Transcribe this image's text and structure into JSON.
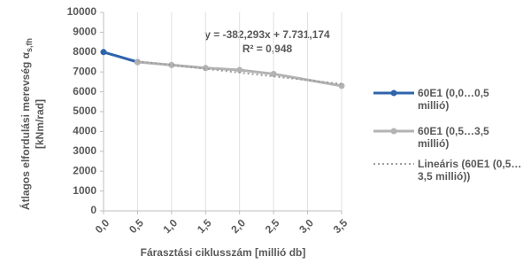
{
  "chart_data": {
    "type": "line",
    "y_label": "Átlagos elfordulási merevség α",
    "y_label_sub": "s,fh",
    "y_label_unit": "[kNm/rad]",
    "x_label": "Fárasztási ciklusszám [millió db]",
    "annotations": [
      "y = -382,293x + 7.731,174",
      "R² = 0,948"
    ],
    "series": [
      {
        "name": "60E1 (0,0…0,5 millió)",
        "color": "#2e64ac",
        "style": "solid",
        "markers": true,
        "x": [
          0,
          0.5
        ],
        "values": [
          8000,
          7500
        ]
      },
      {
        "name": "60E1 (0,5…3,5 millió)",
        "color": "#b3b3b3",
        "style": "solid",
        "markers": true,
        "x": [
          0.5,
          1,
          1.5,
          2,
          2.5,
          3.5
        ],
        "values": [
          7500,
          7350,
          7200,
          7100,
          6900,
          6300
        ]
      },
      {
        "name": "Lineáris (60E1 (0,5…3,5 millió))",
        "color": "#9e9e9e",
        "style": "dotted",
        "markers": false,
        "x": [
          0.5,
          3.5
        ],
        "values": [
          7540,
          6393
        ]
      }
    ],
    "xlim": [
      0,
      3.5
    ],
    "xticks": [
      {
        "value": 0,
        "label": "0,0"
      },
      {
        "value": 0.5,
        "label": "0,5"
      },
      {
        "value": 1,
        "label": "1,0"
      },
      {
        "value": 1.5,
        "label": "1,5"
      },
      {
        "value": 2,
        "label": "2,0"
      },
      {
        "value": 2.5,
        "label": "2,5"
      },
      {
        "value": 3,
        "label": "3,0"
      },
      {
        "value": 3.5,
        "label": "3,5"
      }
    ],
    "ylim": [
      0,
      10000
    ],
    "yticks": [
      0,
      1000,
      2000,
      3000,
      4000,
      5000,
      6000,
      7000,
      8000,
      9000,
      10000
    ],
    "grid": "x",
    "legend": "right"
  }
}
